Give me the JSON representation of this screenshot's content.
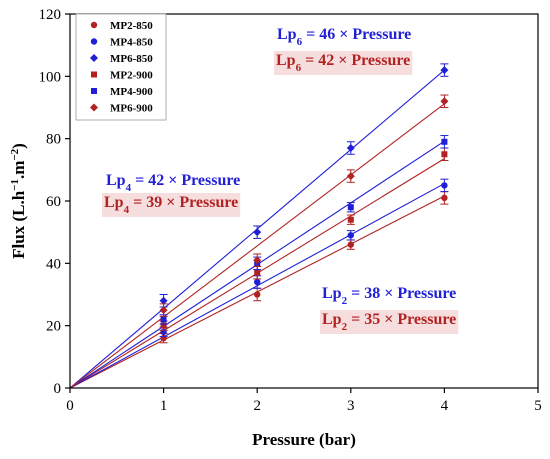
{
  "chart_data": {
    "type": "scatter",
    "xlabel": "Pressure (bar)",
    "ylabel": {
      "prefix": "Flux (L.h",
      "sup1": "−1",
      "mid": ".m",
      "sup2": "−2",
      "suffix": ")"
    },
    "xlim": [
      0,
      5
    ],
    "ylim": [
      0,
      120
    ],
    "xticks": [
      0,
      1,
      2,
      3,
      4,
      5
    ],
    "yticks": [
      0,
      20,
      40,
      60,
      80,
      100,
      120
    ],
    "grid": false,
    "legend_position": "top-left",
    "x": [
      1,
      2,
      3,
      4
    ],
    "series": [
      {
        "name": "MP2-850",
        "color": "#b22222",
        "marker": "circle",
        "values": [
          16,
          30,
          46,
          61
        ],
        "errors": [
          1.5,
          2,
          1.5,
          2
        ],
        "fit_slope": 15.4
      },
      {
        "name": "MP4-850",
        "color": "#1f1fd6",
        "marker": "circle",
        "values": [
          18,
          34,
          49,
          65
        ],
        "errors": [
          1.5,
          2,
          1.5,
          2
        ],
        "fit_slope": 16.4
      },
      {
        "name": "MP6-850",
        "color": "#1f1fd6",
        "marker": "diamond",
        "values": [
          28,
          50,
          77,
          102
        ],
        "errors": [
          2,
          2,
          2,
          2
        ],
        "fit_slope": 25.5
      },
      {
        "name": "MP2-900",
        "color": "#b22222",
        "marker": "square",
        "values": [
          20,
          37,
          54,
          75
        ],
        "errors": [
          1.5,
          2,
          1.5,
          2
        ],
        "fit_slope": 18.4
      },
      {
        "name": "MP4-900",
        "color": "#1f1fd6",
        "marker": "square",
        "values": [
          22,
          40,
          58,
          79
        ],
        "errors": [
          1.5,
          2,
          1.5,
          2
        ],
        "fit_slope": 19.8
      },
      {
        "name": "MP6-900",
        "color": "#b22222",
        "marker": "diamond",
        "values": [
          25,
          41,
          68,
          92
        ],
        "errors": [
          2,
          2,
          2,
          2
        ],
        "fit_slope": 22.8
      }
    ],
    "annotations": [
      {
        "id": "lp6-blue",
        "base": "Lp",
        "sub": "6",
        "rest": " = 46 × Pressure",
        "color": "#1f1fd6",
        "highlight": false
      },
      {
        "id": "lp6-red",
        "base": "Lp",
        "sub": "6",
        "rest": " = 42 × Pressure",
        "color": "#b22222",
        "highlight": true
      },
      {
        "id": "lp4-blue",
        "base": "Lp",
        "sub": "4",
        "rest": " = 42 × Pressure",
        "color": "#1f1fd6",
        "highlight": false
      },
      {
        "id": "lp4-red",
        "base": "Lp",
        "sub": "4",
        "rest": " = 39 × Pressure",
        "color": "#b22222",
        "highlight": true
      },
      {
        "id": "lp2-blue",
        "base": "Lp",
        "sub": "2",
        "rest": " = 38 × Pressure",
        "color": "#1f1fd6",
        "highlight": false
      },
      {
        "id": "lp2-red",
        "base": "Lp",
        "sub": "2",
        "rest": " = 35 × Pressure",
        "color": "#b22222",
        "highlight": true
      }
    ]
  }
}
